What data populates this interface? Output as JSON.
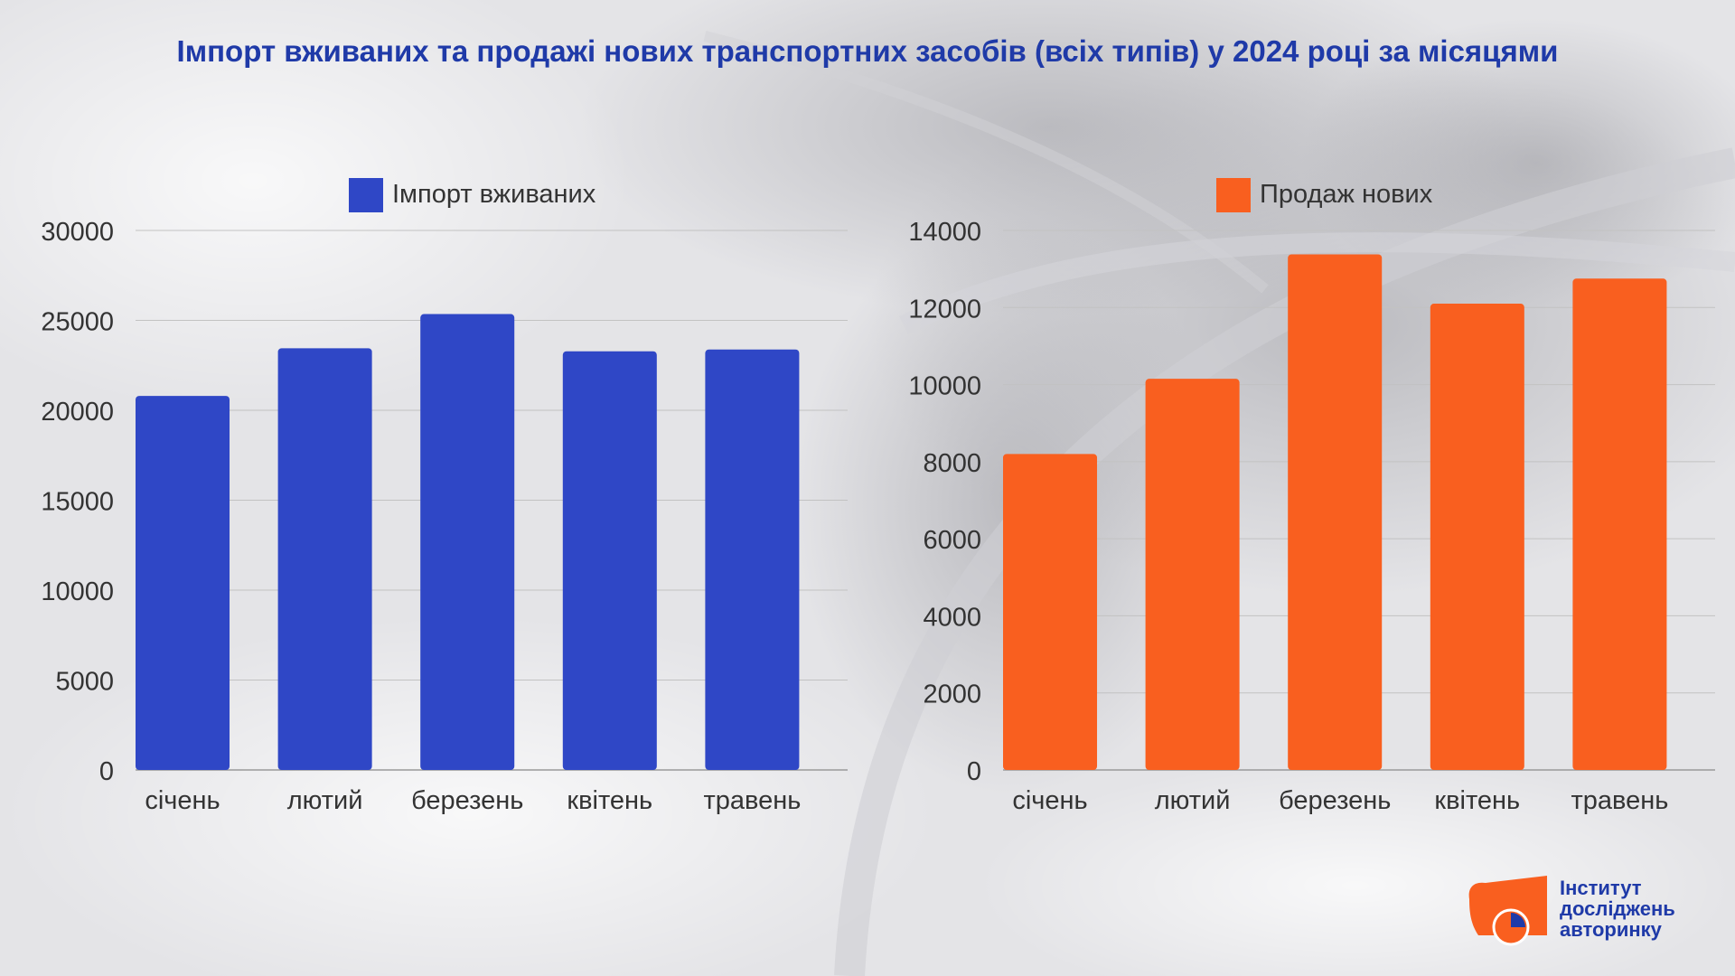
{
  "title": "Імпорт вживаних та продажі нових транспортних засобів (всіх типів) у 2024 році за місяцями",
  "logo": {
    "line1": "Інститут",
    "line2": "досліджень",
    "line3": "авторинку"
  },
  "chart_data": [
    {
      "type": "bar",
      "title": "",
      "xlabel": "",
      "ylabel": "",
      "categories": [
        "січень",
        "лютий",
        "березень",
        "квітень",
        "травень"
      ],
      "series": [
        {
          "name": "Імпорт вживаних",
          "values": [
            20800,
            23450,
            25350,
            23280,
            23380
          ],
          "color": "#2f47c6"
        }
      ],
      "ylim": [
        0,
        30000
      ],
      "yticks": [
        0,
        5000,
        10000,
        15000,
        20000,
        25000,
        30000
      ],
      "grid": true,
      "legend": "top-center"
    },
    {
      "type": "bar",
      "title": "",
      "xlabel": "",
      "ylabel": "",
      "categories": [
        "січень",
        "лютий",
        "березень",
        "квітень",
        "травень"
      ],
      "series": [
        {
          "name": "Продаж нових",
          "values": [
            8200,
            10150,
            13380,
            12100,
            12750
          ],
          "color": "#f95f1f"
        }
      ],
      "ylim": [
        0,
        14000
      ],
      "yticks": [
        0,
        2000,
        4000,
        6000,
        8000,
        10000,
        12000,
        14000
      ],
      "grid": true,
      "legend": "top-center"
    }
  ]
}
